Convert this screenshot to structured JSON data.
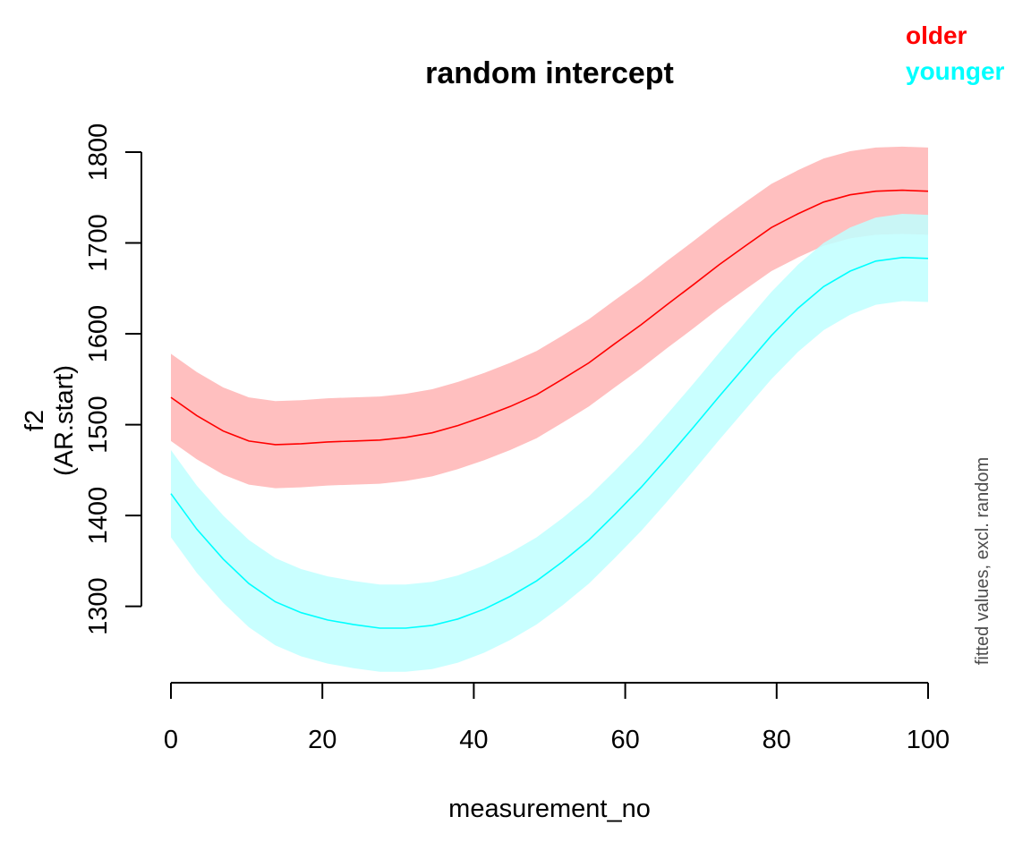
{
  "chart_data": {
    "type": "line",
    "title": "random intercept",
    "xlabel": "measurement_no",
    "ylabel_lines": [
      "f2",
      "(AR.start)"
    ],
    "side_note": "fitted values, excl. random",
    "xlim": [
      0,
      100
    ],
    "ylim": [
      1210,
      1800
    ],
    "x_ticks": [
      0,
      20,
      40,
      60,
      80,
      100
    ],
    "y_ticks": [
      1300,
      1400,
      1500,
      1600,
      1700,
      1800
    ],
    "grid": false,
    "legend_position": "top-right",
    "x": [
      0,
      3.4,
      6.9,
      10.3,
      13.8,
      17.2,
      20.7,
      24.1,
      27.6,
      31.0,
      34.5,
      37.9,
      41.4,
      44.8,
      48.3,
      51.7,
      55.2,
      58.6,
      62.1,
      65.5,
      69.0,
      72.4,
      75.9,
      79.3,
      82.8,
      86.2,
      89.7,
      93.1,
      96.6,
      100
    ],
    "series": [
      {
        "name": "older",
        "color": "#ff0000",
        "band_color": "#ffbfbf",
        "values": [
          1530,
          1510,
          1493,
          1482,
          1478,
          1479,
          1481,
          1482,
          1483,
          1486,
          1491,
          1499,
          1509,
          1520,
          1533,
          1550,
          1568,
          1589,
          1610,
          1632,
          1654,
          1676,
          1697,
          1717,
          1732,
          1745,
          1753,
          1757,
          1758,
          1757
        ],
        "lower": [
          1482,
          1462,
          1445,
          1434,
          1430,
          1431,
          1433,
          1434,
          1435,
          1438,
          1443,
          1451,
          1461,
          1472,
          1485,
          1502,
          1520,
          1541,
          1562,
          1584,
          1606,
          1628,
          1649,
          1669,
          1684,
          1697,
          1705,
          1709,
          1710,
          1709
        ],
        "upper": [
          1578,
          1558,
          1541,
          1530,
          1526,
          1527,
          1529,
          1530,
          1531,
          1534,
          1539,
          1547,
          1557,
          1568,
          1581,
          1598,
          1616,
          1637,
          1658,
          1680,
          1702,
          1724,
          1745,
          1765,
          1780,
          1793,
          1801,
          1805,
          1806,
          1805
        ]
      },
      {
        "name": "younger",
        "color": "#00ffff",
        "band_color": "#bfffff",
        "values": [
          1424,
          1385,
          1352,
          1325,
          1305,
          1293,
          1285,
          1280,
          1276,
          1276,
          1279,
          1286,
          1297,
          1311,
          1328,
          1349,
          1373,
          1401,
          1431,
          1463,
          1497,
          1531,
          1565,
          1598,
          1628,
          1652,
          1669,
          1680,
          1684,
          1683
        ],
        "lower": [
          1376,
          1337,
          1304,
          1277,
          1257,
          1245,
          1237,
          1232,
          1228,
          1228,
          1231,
          1238,
          1249,
          1263,
          1280,
          1301,
          1325,
          1353,
          1383,
          1415,
          1449,
          1483,
          1517,
          1550,
          1580,
          1604,
          1621,
          1632,
          1636,
          1635
        ],
        "upper": [
          1472,
          1433,
          1400,
          1373,
          1353,
          1341,
          1333,
          1328,
          1324,
          1324,
          1327,
          1334,
          1345,
          1359,
          1376,
          1397,
          1421,
          1449,
          1479,
          1511,
          1545,
          1579,
          1613,
          1646,
          1676,
          1700,
          1717,
          1728,
          1732,
          1731
        ]
      }
    ]
  }
}
